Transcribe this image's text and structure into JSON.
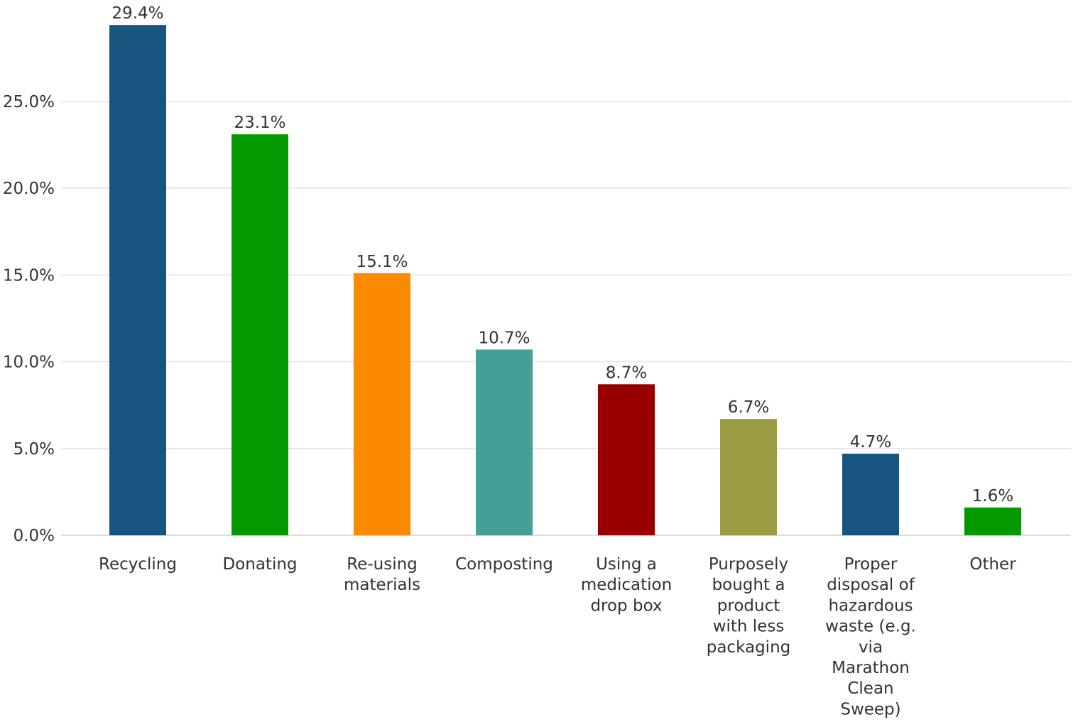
{
  "chart_data": {
    "type": "bar",
    "title": "",
    "xlabel": "",
    "ylabel": "",
    "ylim": [
      0,
      30
    ],
    "grid": true,
    "legend": "none",
    "y_ticks": [
      0,
      5,
      10,
      15,
      20,
      25
    ],
    "y_tick_labels": [
      "0.0%",
      "5.0%",
      "10.0%",
      "15.0%",
      "20.0%",
      "25.0%"
    ],
    "categories": [
      [
        "Recycling"
      ],
      [
        "Donating"
      ],
      [
        "Re-using",
        "materials"
      ],
      [
        "Composting"
      ],
      [
        "Using a",
        "medication",
        "drop box"
      ],
      [
        "Purposely",
        "bought a",
        "product",
        "with less",
        "packaging"
      ],
      [
        "Proper",
        "disposal of",
        "hazardous",
        "waste (e.g.",
        "via",
        "Marathon",
        "Clean",
        "Sweep)"
      ],
      [
        "Other"
      ]
    ],
    "values": [
      29.4,
      23.1,
      15.1,
      10.7,
      8.7,
      6.7,
      4.7,
      1.6
    ],
    "value_labels": [
      "29.4%",
      "23.1%",
      "15.1%",
      "10.7%",
      "8.7%",
      "6.7%",
      "4.7%",
      "1.6%"
    ],
    "colors": [
      "#17547f",
      "#059900",
      "#fa8a00",
      "#449f96",
      "#980000",
      "#9c9a42",
      "#17547f",
      "#059900"
    ]
  }
}
